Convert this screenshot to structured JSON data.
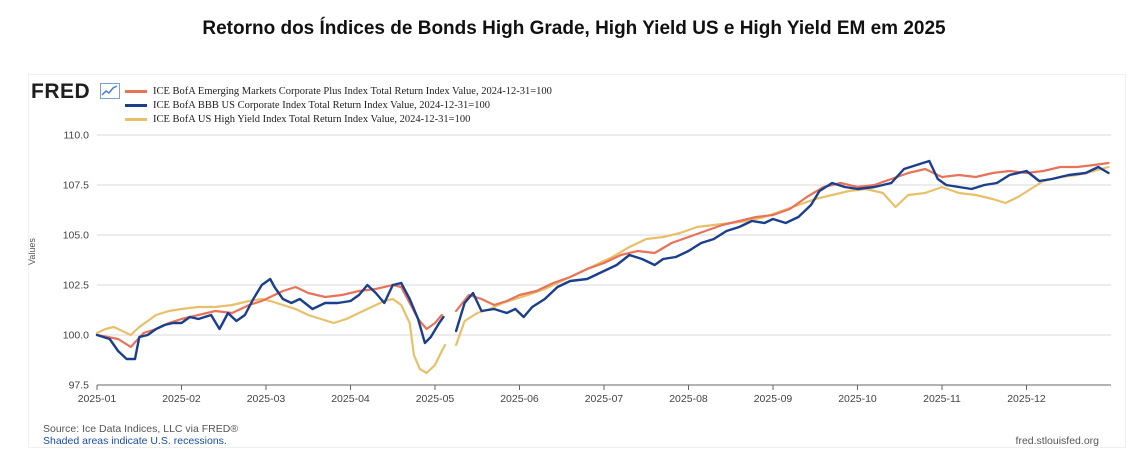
{
  "title": "Retorno dos Índices de Bonds High Grade, High Yield US e High Yield EM em 2025",
  "fred": {
    "logo_text": "FRED",
    "logo_icon": "chart-line-icon",
    "source": "Source: Ice Data Indices, LLC via FRED®",
    "recessions_note": "Shaded areas indicate U.S. recessions.",
    "site": "fred.stlouisfed.org"
  },
  "colors": {
    "em": "#e8735a",
    "bbb": "#1a3f8c",
    "hy": "#e8c06a",
    "grid": "#d9d9d9",
    "axis": "#666666"
  },
  "chart_data": {
    "type": "line",
    "title": "Retorno dos Índices de Bonds High Grade, High Yield US e High Yield EM em 2025",
    "xlabel": "",
    "ylabel": "Values",
    "x_domain": [
      0,
      12
    ],
    "ylim": [
      97.5,
      110.0
    ],
    "yticks": [
      97.5,
      100.0,
      102.5,
      105.0,
      107.5,
      110.0
    ],
    "ytick_labels": [
      "97.5",
      "100.0",
      "102.5",
      "105.0",
      "107.5",
      "110.0"
    ],
    "xticks": [
      0,
      1,
      2,
      3,
      4,
      5,
      6,
      7,
      8,
      9,
      10,
      11
    ],
    "xtick_labels": [
      "2025-01",
      "2025-02",
      "2025-03",
      "2025-04",
      "2025-05",
      "2025-06",
      "2025-07",
      "2025-08",
      "2025-09",
      "2025-10",
      "2025-11",
      "2025-12"
    ],
    "grid": true,
    "legend_position": "top-left",
    "series": [
      {
        "name": "ICE BofA Emerging Markets Corporate Plus Index Total Return Index Value, 2024-12-31=100",
        "color_key": "em",
        "segments": [
          [
            [
              0.0,
              100.0
            ],
            [
              0.25,
              99.8
            ],
            [
              0.4,
              99.4
            ],
            [
              0.55,
              100.1
            ],
            [
              0.7,
              100.3
            ],
            [
              0.85,
              100.6
            ],
            [
              1.0,
              100.8
            ],
            [
              1.2,
              101.0
            ],
            [
              1.4,
              101.2
            ],
            [
              1.6,
              101.1
            ],
            [
              1.8,
              101.5
            ],
            [
              1.95,
              101.7
            ],
            [
              2.05,
              101.9
            ],
            [
              2.2,
              102.2
            ],
            [
              2.35,
              102.4
            ],
            [
              2.5,
              102.1
            ],
            [
              2.7,
              101.9
            ],
            [
              2.9,
              102.0
            ],
            [
              3.1,
              102.2
            ],
            [
              3.3,
              102.3
            ],
            [
              3.5,
              102.5
            ],
            [
              3.6,
              102.4
            ],
            [
              3.7,
              101.6
            ],
            [
              3.8,
              100.8
            ],
            [
              3.9,
              100.3
            ],
            [
              4.0,
              100.6
            ],
            [
              4.08,
              101.0
            ]
          ],
          [
            [
              4.25,
              101.2
            ],
            [
              4.4,
              102.0
            ],
            [
              4.55,
              101.8
            ],
            [
              4.7,
              101.5
            ],
            [
              4.85,
              101.7
            ],
            [
              5.0,
              102.0
            ],
            [
              5.2,
              102.2
            ],
            [
              5.4,
              102.6
            ],
            [
              5.6,
              102.9
            ],
            [
              5.8,
              103.3
            ],
            [
              6.0,
              103.6
            ],
            [
              6.2,
              104.0
            ],
            [
              6.4,
              104.2
            ],
            [
              6.6,
              104.1
            ],
            [
              6.8,
              104.6
            ],
            [
              7.0,
              104.9
            ],
            [
              7.2,
              105.2
            ],
            [
              7.4,
              105.5
            ],
            [
              7.6,
              105.7
            ],
            [
              7.8,
              105.9
            ],
            [
              8.0,
              106.0
            ],
            [
              8.2,
              106.3
            ],
            [
              8.4,
              106.9
            ],
            [
              8.6,
              107.4
            ],
            [
              8.8,
              107.6
            ],
            [
              9.0,
              107.4
            ],
            [
              9.2,
              107.5
            ],
            [
              9.4,
              107.8
            ],
            [
              9.6,
              108.1
            ],
            [
              9.8,
              108.3
            ],
            [
              10.0,
              107.9
            ],
            [
              10.2,
              108.0
            ],
            [
              10.4,
              107.9
            ],
            [
              10.6,
              108.1
            ],
            [
              10.8,
              108.2
            ],
            [
              11.0,
              108.1
            ],
            [
              11.2,
              108.2
            ],
            [
              11.4,
              108.4
            ],
            [
              11.6,
              108.4
            ],
            [
              11.8,
              108.5
            ],
            [
              11.97,
              108.6
            ]
          ]
        ]
      },
      {
        "name": "ICE BofA BBB US Corporate Index Total Return Index Value, 2024-12-31=100",
        "color_key": "bbb",
        "segments": [
          [
            [
              0.0,
              100.0
            ],
            [
              0.15,
              99.8
            ],
            [
              0.25,
              99.2
            ],
            [
              0.35,
              98.8
            ],
            [
              0.45,
              98.8
            ],
            [
              0.5,
              99.9
            ],
            [
              0.6,
              100.0
            ],
            [
              0.7,
              100.3
            ],
            [
              0.8,
              100.5
            ],
            [
              0.9,
              100.6
            ],
            [
              1.0,
              100.6
            ],
            [
              1.1,
              100.9
            ],
            [
              1.2,
              100.8
            ],
            [
              1.35,
              101.0
            ],
            [
              1.45,
              100.3
            ],
            [
              1.55,
              101.1
            ],
            [
              1.65,
              100.7
            ],
            [
              1.75,
              101.0
            ],
            [
              1.85,
              101.8
            ],
            [
              1.95,
              102.5
            ],
            [
              2.05,
              102.8
            ],
            [
              2.1,
              102.4
            ],
            [
              2.2,
              101.8
            ],
            [
              2.3,
              101.6
            ],
            [
              2.4,
              101.8
            ],
            [
              2.55,
              101.3
            ],
            [
              2.7,
              101.6
            ],
            [
              2.85,
              101.6
            ],
            [
              3.0,
              101.7
            ],
            [
              3.1,
              102.0
            ],
            [
              3.2,
              102.5
            ],
            [
              3.3,
              102.1
            ],
            [
              3.4,
              101.6
            ],
            [
              3.5,
              102.5
            ],
            [
              3.6,
              102.6
            ],
            [
              3.7,
              101.8
            ],
            [
              3.8,
              100.8
            ],
            [
              3.88,
              99.6
            ],
            [
              3.95,
              99.9
            ],
            [
              4.05,
              100.6
            ],
            [
              4.1,
              100.9
            ]
          ],
          [
            [
              4.25,
              100.2
            ],
            [
              4.35,
              101.6
            ],
            [
              4.45,
              102.1
            ],
            [
              4.55,
              101.2
            ],
            [
              4.7,
              101.3
            ],
            [
              4.85,
              101.1
            ],
            [
              4.95,
              101.3
            ],
            [
              5.05,
              100.9
            ],
            [
              5.15,
              101.4
            ],
            [
              5.3,
              101.8
            ],
            [
              5.45,
              102.4
            ],
            [
              5.6,
              102.7
            ],
            [
              5.8,
              102.8
            ],
            [
              6.0,
              103.2
            ],
            [
              6.15,
              103.5
            ],
            [
              6.3,
              104.0
            ],
            [
              6.45,
              103.8
            ],
            [
              6.6,
              103.5
            ],
            [
              6.7,
              103.8
            ],
            [
              6.85,
              103.9
            ],
            [
              7.0,
              104.2
            ],
            [
              7.15,
              104.6
            ],
            [
              7.3,
              104.8
            ],
            [
              7.45,
              105.2
            ],
            [
              7.6,
              105.4
            ],
            [
              7.75,
              105.7
            ],
            [
              7.9,
              105.6
            ],
            [
              8.0,
              105.8
            ],
            [
              8.15,
              105.6
            ],
            [
              8.3,
              105.9
            ],
            [
              8.45,
              106.5
            ],
            [
              8.55,
              107.2
            ],
            [
              8.7,
              107.6
            ],
            [
              8.85,
              107.4
            ],
            [
              9.0,
              107.3
            ],
            [
              9.2,
              107.4
            ],
            [
              9.4,
              107.6
            ],
            [
              9.55,
              108.3
            ],
            [
              9.7,
              108.5
            ],
            [
              9.85,
              108.7
            ],
            [
              9.95,
              107.8
            ],
            [
              10.05,
              107.5
            ],
            [
              10.2,
              107.4
            ],
            [
              10.35,
              107.3
            ],
            [
              10.5,
              107.5
            ],
            [
              10.65,
              107.6
            ],
            [
              10.8,
              108.0
            ],
            [
              11.0,
              108.2
            ],
            [
              11.15,
              107.7
            ],
            [
              11.3,
              107.8
            ],
            [
              11.5,
              108.0
            ],
            [
              11.7,
              108.1
            ],
            [
              11.85,
              108.4
            ],
            [
              11.97,
              108.1
            ]
          ]
        ]
      },
      {
        "name": "ICE BofA US High Yield Index Total Return Index Value, 2024-12-31=100",
        "color_key": "hy",
        "segments": [
          [
            [
              0.0,
              100.1
            ],
            [
              0.1,
              100.3
            ],
            [
              0.2,
              100.4
            ],
            [
              0.3,
              100.2
            ],
            [
              0.4,
              100.0
            ],
            [
              0.5,
              100.4
            ],
            [
              0.6,
              100.7
            ],
            [
              0.7,
              101.0
            ],
            [
              0.85,
              101.2
            ],
            [
              1.0,
              101.3
            ],
            [
              1.2,
              101.4
            ],
            [
              1.4,
              101.4
            ],
            [
              1.6,
              101.5
            ],
            [
              1.8,
              101.7
            ],
            [
              1.95,
              101.8
            ],
            [
              2.05,
              101.7
            ],
            [
              2.2,
              101.5
            ],
            [
              2.35,
              101.3
            ],
            [
              2.5,
              101.0
            ],
            [
              2.65,
              100.8
            ],
            [
              2.8,
              100.6
            ],
            [
              2.95,
              100.8
            ],
            [
              3.1,
              101.1
            ],
            [
              3.25,
              101.4
            ],
            [
              3.4,
              101.7
            ],
            [
              3.5,
              101.8
            ],
            [
              3.6,
              101.5
            ],
            [
              3.7,
              100.6
            ],
            [
              3.75,
              99.0
            ],
            [
              3.82,
              98.3
            ],
            [
              3.9,
              98.1
            ],
            [
              4.0,
              98.5
            ],
            [
              4.08,
              99.2
            ],
            [
              4.12,
              99.5
            ]
          ],
          [
            [
              4.25,
              99.5
            ],
            [
              4.35,
              100.7
            ],
            [
              4.5,
              101.1
            ],
            [
              4.65,
              101.3
            ],
            [
              4.8,
              101.6
            ],
            [
              4.95,
              101.8
            ],
            [
              5.1,
              102.0
            ],
            [
              5.3,
              102.3
            ],
            [
              5.5,
              102.7
            ],
            [
              5.7,
              103.1
            ],
            [
              5.9,
              103.5
            ],
            [
              6.1,
              103.9
            ],
            [
              6.3,
              104.4
            ],
            [
              6.5,
              104.8
            ],
            [
              6.7,
              104.9
            ],
            [
              6.9,
              105.1
            ],
            [
              7.1,
              105.4
            ],
            [
              7.3,
              105.5
            ],
            [
              7.5,
              105.6
            ],
            [
              7.7,
              105.7
            ],
            [
              7.9,
              105.9
            ],
            [
              8.1,
              106.2
            ],
            [
              8.3,
              106.5
            ],
            [
              8.5,
              106.8
            ],
            [
              8.7,
              107.0
            ],
            [
              8.9,
              107.2
            ],
            [
              9.1,
              107.3
            ],
            [
              9.3,
              107.1
            ],
            [
              9.45,
              106.4
            ],
            [
              9.6,
              107.0
            ],
            [
              9.8,
              107.1
            ],
            [
              10.0,
              107.4
            ],
            [
              10.2,
              107.1
            ],
            [
              10.4,
              107.0
            ],
            [
              10.6,
              106.8
            ],
            [
              10.75,
              106.6
            ],
            [
              10.9,
              106.9
            ],
            [
              11.05,
              107.3
            ],
            [
              11.2,
              107.7
            ],
            [
              11.4,
              107.9
            ],
            [
              11.6,
              108.0
            ],
            [
              11.8,
              108.2
            ],
            [
              11.97,
              108.4
            ]
          ]
        ]
      }
    ]
  }
}
